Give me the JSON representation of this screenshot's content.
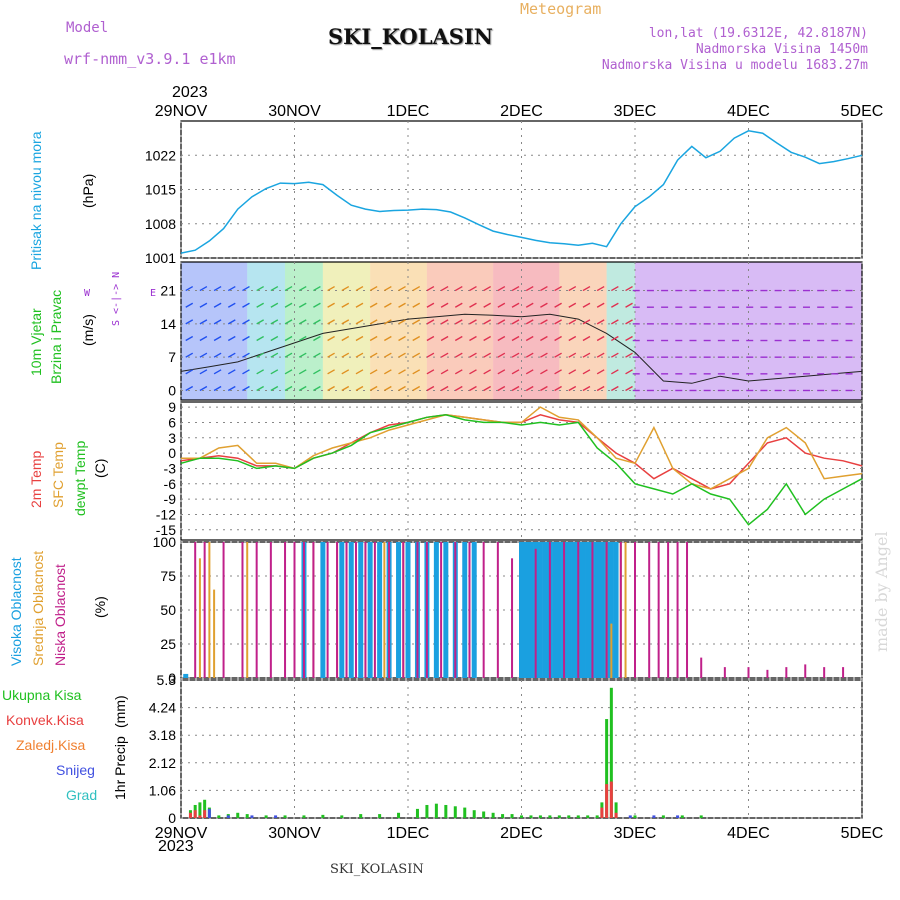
{
  "header": {
    "model_label": "Model",
    "model_name": "wrf-nmm_v3.9.1 e1km",
    "meteogram_label": "Meteogram",
    "station": "SKI_KOLASIN",
    "lonlat": "lon,lat (19.6312E, 42.8187N)",
    "altitude": "Nadmorska Visina 1450m",
    "model_altitude": "Nadmorska Visina u modelu 1683.27m",
    "year": "2023"
  },
  "footer": {
    "station": "SKI_KOLASIN",
    "year": "2023"
  },
  "watermark": "made by Angel",
  "colors": {
    "pressure": "#1aa5e0",
    "temp2m": "#e84040",
    "sfc": "#e0a030",
    "dewpt": "#20c020",
    "high_cloud": "#1aa0e0",
    "mid_cloud": "#e0a030",
    "low_cloud": "#c0208a",
    "total_rain": "#20c020",
    "conv_rain": "#e84040",
    "frz_rain": "#f08030",
    "snow": "#4050e0",
    "hail": "#30c0c0",
    "wind_west": "#9b30d0"
  },
  "chart_data": [
    {
      "type": "line",
      "name": "pressure",
      "ylabels": [
        "Pritisak na nivou mora"
      ],
      "unit": "(hPa)",
      "ylim": [
        1001,
        1029
      ],
      "yticks": [
        "1001",
        "1008",
        "1015",
        "1022"
      ],
      "ytick_values": [
        1001,
        1008,
        1015,
        1022
      ],
      "x_labels": [
        "29NOV",
        "30NOV",
        "1DEC",
        "2DEC",
        "3DEC",
        "4DEC",
        "5DEC"
      ],
      "x_hours": [
        0,
        24,
        48,
        72,
        96,
        120,
        144
      ],
      "series": [
        {
          "key": "pressure",
          "x": [
            0,
            3,
            6,
            9,
            12,
            15,
            18,
            21,
            24,
            27,
            30,
            33,
            36,
            39,
            42,
            45,
            48,
            51,
            54,
            57,
            60,
            63,
            66,
            69,
            72,
            75,
            78,
            81,
            84,
            87,
            90,
            93,
            96,
            99,
            102,
            105,
            108,
            111,
            114,
            117,
            120,
            123,
            126,
            129,
            132,
            135,
            138,
            141,
            144
          ],
          "y": [
            1002,
            1002.6,
            1004.5,
            1007,
            1011,
            1013.5,
            1015.2,
            1016.3,
            1016.2,
            1016.5,
            1016,
            1013.8,
            1011.8,
            1011,
            1010.5,
            1010.7,
            1010.8,
            1011,
            1010.9,
            1010.4,
            1009.2,
            1007.8,
            1006.5,
            1005.8,
            1005.2,
            1004.6,
            1004.1,
            1003.9,
            1003.6,
            1004,
            1003.3,
            1008,
            1011.5,
            1013.5,
            1016,
            1021,
            1023.8,
            1021.5,
            1022.8,
            1025.5,
            1027,
            1026.5,
            1024.5,
            1022.6,
            1021.6,
            1020.3,
            1020.7,
            1021.3,
            1022
          ]
        }
      ]
    },
    {
      "type": "line",
      "name": "wind",
      "ylabels": [
        "10m Vjetar",
        "Brzina i Pravac"
      ],
      "unit": "(m/s)",
      "ylim": [
        -2,
        27
      ],
      "yticks": [
        "0",
        "7",
        "14",
        "21"
      ],
      "ytick_values": [
        0,
        7,
        14,
        21
      ],
      "compass": "S <-|-> N",
      "compass_w": "W",
      "compass_e": "E",
      "series": [
        {
          "key": "wind_speed",
          "x": [
            0,
            6,
            12,
            18,
            24,
            30,
            36,
            42,
            48,
            54,
            60,
            66,
            72,
            78,
            84,
            90,
            96,
            102,
            108,
            114,
            120,
            126,
            132,
            138,
            144
          ],
          "y": [
            4,
            5,
            6,
            8,
            10,
            12,
            13,
            14,
            15,
            15.5,
            16,
            15.8,
            15.5,
            16,
            15,
            12,
            8,
            2,
            1.5,
            3,
            2,
            2.5,
            3,
            3.5,
            4
          ]
        }
      ]
    },
    {
      "type": "line",
      "name": "temperature",
      "ylabels": [
        "2m Temp",
        "SFC Temp",
        "dewpt Temp"
      ],
      "unit": "(C)",
      "ylim": [
        -17,
        10
      ],
      "yticks": [
        "-15",
        "-12",
        "-9",
        "-6",
        "-3",
        "0",
        "3",
        "6",
        "9"
      ],
      "ytick_values": [
        -15,
        -12,
        -9,
        -6,
        -3,
        0,
        3,
        6,
        9
      ],
      "series": [
        {
          "key": "temp2m",
          "x": [
            0,
            4,
            8,
            12,
            16,
            20,
            24,
            28,
            32,
            36,
            40,
            44,
            48,
            52,
            56,
            60,
            64,
            68,
            72,
            76,
            80,
            84,
            88,
            92,
            96,
            100,
            104,
            108,
            112,
            116,
            120,
            124,
            128,
            132,
            136,
            140,
            144
          ],
          "y": [
            -1.5,
            -1,
            -0.5,
            -1,
            -2.5,
            -2.5,
            -3,
            -1,
            0,
            2,
            4,
            5.5,
            6,
            7,
            7.5,
            7,
            6.5,
            6,
            6,
            7.5,
            6.5,
            6,
            3,
            0,
            -2,
            -5,
            -3,
            -5,
            -7,
            -6,
            -2,
            2,
            3,
            0,
            -1,
            -1.5,
            -2.5
          ]
        },
        {
          "key": "sfc",
          "x": [
            0,
            4,
            8,
            12,
            16,
            20,
            24,
            28,
            32,
            36,
            40,
            44,
            48,
            52,
            56,
            60,
            64,
            68,
            72,
            76,
            80,
            84,
            88,
            92,
            96,
            100,
            104,
            108,
            112,
            116,
            120,
            124,
            128,
            132,
            136,
            140,
            144
          ],
          "y": [
            -1,
            -1,
            1,
            1.5,
            -2,
            -2,
            -3,
            -0.5,
            1,
            2,
            3,
            4.5,
            5.5,
            6.5,
            7.5,
            7,
            6.5,
            6,
            6,
            9,
            7,
            6.5,
            3,
            -1,
            -2,
            5,
            -3,
            -6,
            -7,
            -5,
            -3,
            3,
            5,
            2,
            -5,
            -4.5,
            -4
          ]
        },
        {
          "key": "dewpt",
          "x": [
            0,
            4,
            8,
            12,
            16,
            20,
            24,
            28,
            32,
            36,
            40,
            44,
            48,
            52,
            56,
            60,
            64,
            68,
            72,
            76,
            80,
            84,
            88,
            92,
            96,
            100,
            104,
            108,
            112,
            116,
            120,
            124,
            128,
            132,
            136,
            140,
            144
          ],
          "y": [
            -2,
            -1,
            -1,
            -1.5,
            -3,
            -2.5,
            -3,
            -1,
            0,
            1.5,
            4,
            5,
            6,
            7,
            7.5,
            6.5,
            6,
            6,
            5.5,
            6,
            5.5,
            6,
            1,
            -2,
            -6,
            -7,
            -8,
            -6,
            -8,
            -9,
            -14,
            -11,
            -6,
            -12,
            -9,
            -7,
            -5
          ]
        }
      ]
    },
    {
      "type": "bar",
      "name": "cloud",
      "ylabels": [
        "Visoka Oblacnost",
        "Srednja Oblacnost",
        "Niska Oblacnost"
      ],
      "unit": "(%)",
      "ylim": [
        0,
        100
      ],
      "yticks": [
        "0",
        "25",
        "50",
        "75",
        "100"
      ],
      "ytick_values": [
        0,
        25,
        50,
        75,
        100
      ],
      "series": [
        {
          "key": "high_cloud",
          "x": [
            1,
            26,
            30,
            34,
            36,
            38,
            40,
            42,
            44,
            46,
            48,
            50,
            52,
            54,
            56,
            58,
            60,
            62,
            72,
            73,
            74,
            75,
            76,
            77,
            78,
            79,
            80,
            81,
            82,
            83,
            84,
            85,
            86,
            87,
            88,
            89,
            90,
            91,
            92
          ],
          "y": [
            3,
            100,
            100,
            100,
            100,
            100,
            100,
            100,
            100,
            100,
            100,
            100,
            100,
            100,
            100,
            100,
            100,
            100,
            100,
            100,
            100,
            100,
            100,
            100,
            100,
            100,
            100,
            100,
            100,
            100,
            100,
            100,
            100,
            100,
            100,
            100,
            100,
            100,
            100
          ]
        },
        {
          "key": "mid_cloud",
          "x": [
            4,
            6,
            7,
            14,
            28,
            33,
            35,
            39,
            43,
            47,
            90,
            91,
            93,
            94
          ],
          "y": [
            88,
            100,
            65,
            100,
            100,
            100,
            100,
            100,
            100,
            100,
            100,
            40,
            100,
            100
          ]
        },
        {
          "key": "low_cloud",
          "x": [
            3,
            5,
            9,
            13,
            16,
            19,
            22,
            24,
            26,
            28,
            31,
            33,
            35,
            37,
            39,
            41,
            44,
            47,
            50,
            52,
            55,
            58,
            61,
            64,
            67,
            70,
            75,
            78,
            81,
            84,
            87,
            90,
            93,
            96,
            99,
            101,
            103,
            105,
            107,
            110,
            115,
            120,
            124,
            128,
            132,
            136,
            140
          ],
          "y": [
            100,
            100,
            100,
            100,
            100,
            100,
            100,
            100,
            100,
            100,
            100,
            100,
            100,
            100,
            100,
            100,
            100,
            100,
            100,
            100,
            100,
            100,
            100,
            100,
            100,
            88,
            95,
            100,
            100,
            100,
            100,
            100,
            100,
            100,
            100,
            100,
            100,
            100,
            100,
            15,
            8,
            8,
            6,
            8,
            10,
            8,
            8
          ]
        }
      ]
    },
    {
      "type": "bar",
      "name": "precip",
      "ylabels": [
        "1hr Precip"
      ],
      "unit": "(mm)",
      "ylim": [
        0,
        5.3
      ],
      "yticks": [
        "0",
        "1.06",
        "2.12",
        "3.18",
        "4.24",
        "5.3"
      ],
      "ytick_values": [
        0,
        1.06,
        2.12,
        3.18,
        4.24,
        5.3
      ],
      "legend": [
        "Ukupna Kisa",
        "Konvek.Kisa",
        "Zaledj.Kisa",
        "Snijeg",
        "Grad"
      ],
      "series": [
        {
          "key": "total_rain",
          "x": [
            2,
            3,
            4,
            5,
            6,
            8,
            10,
            12,
            14,
            18,
            22,
            26,
            30,
            34,
            38,
            42,
            46,
            50,
            52,
            54,
            56,
            58,
            60,
            62,
            64,
            66,
            68,
            70,
            72,
            74,
            76,
            78,
            80,
            82,
            84,
            86,
            88,
            89,
            90,
            91,
            92,
            96,
            102,
            106,
            110
          ],
          "y": [
            0.3,
            0.5,
            0.6,
            0.7,
            0.4,
            0.1,
            0.15,
            0.2,
            0.15,
            0.1,
            0.1,
            0.1,
            0.12,
            0.1,
            0.15,
            0.15,
            0.2,
            0.35,
            0.5,
            0.55,
            0.5,
            0.45,
            0.4,
            0.3,
            0.25,
            0.2,
            0.15,
            0.15,
            0.1,
            0.1,
            0.1,
            0.1,
            0.1,
            0.1,
            0.1,
            0.1,
            0.1,
            0.6,
            3.8,
            5.0,
            0.6,
            0.1,
            0.1,
            0.1,
            0.1
          ]
        },
        {
          "key": "conv_rain",
          "x": [
            2,
            3,
            4,
            5,
            89,
            90,
            91,
            92
          ],
          "y": [
            0.2,
            0.3,
            0.1,
            0.3,
            0.4,
            1.3,
            1.4,
            0.2
          ]
        },
        {
          "key": "snow",
          "x": [
            6,
            10,
            15,
            20,
            95,
            100,
            105
          ],
          "y": [
            0.35,
            0.1,
            0.1,
            0.1,
            0.1,
            0.1,
            0.1
          ]
        }
      ]
    }
  ]
}
